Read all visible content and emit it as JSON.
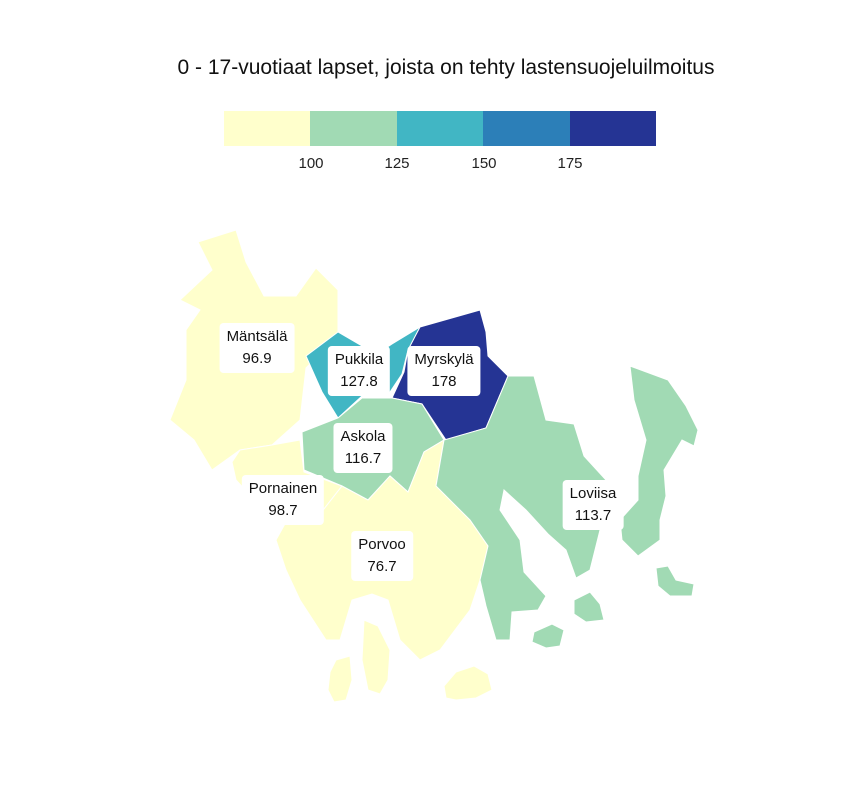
{
  "title": "0 - 17-vuotiaat lapset, joista on tehty lastensuojeluilmoitus",
  "legend": {
    "colors": [
      "#ffffcc",
      "#a1dab4",
      "#41b6c4",
      "#2c7fb8",
      "#253494"
    ],
    "ticks": [
      "100",
      "125",
      "150",
      "175"
    ]
  },
  "regions": [
    {
      "name": "Mäntsälä",
      "value": "96.9",
      "color": "#ffffcc"
    },
    {
      "name": "Pukkila",
      "value": "127.8",
      "color": "#41b6c4"
    },
    {
      "name": "Myrskylä",
      "value": "178",
      "color": "#253494"
    },
    {
      "name": "Askola",
      "value": "116.7",
      "color": "#a1dab4"
    },
    {
      "name": "Pornainen",
      "value": "98.7",
      "color": "#ffffcc"
    },
    {
      "name": "Porvoo",
      "value": "76.7",
      "color": "#ffffcc"
    },
    {
      "name": "Loviisa",
      "value": "113.7",
      "color": "#a1dab4"
    }
  ]
}
